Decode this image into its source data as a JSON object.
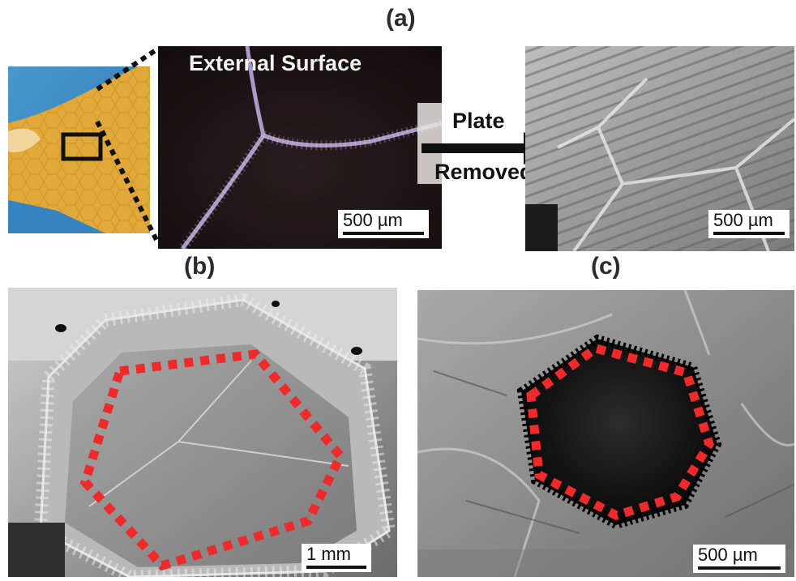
{
  "figure": {
    "panel_a_label": "(a)",
    "panel_b_label": "(b)",
    "panel_c_label": "(c)",
    "external_surface_label": "External Surface",
    "arrow_text_line1": "Plate",
    "arrow_text_line2": "Removed",
    "scale_a_middle": "500 µm",
    "scale_a_right": "500 µm",
    "scale_b": "1 mm",
    "scale_c": "500 µm"
  },
  "colors": {
    "outline_red": "#ee2a2a",
    "photo_blue_bg": "#3d8ac4",
    "shell_yellow": "#e0a83a",
    "dark_surface": "#1b1214",
    "sem_gray": "#8a8a8a"
  }
}
